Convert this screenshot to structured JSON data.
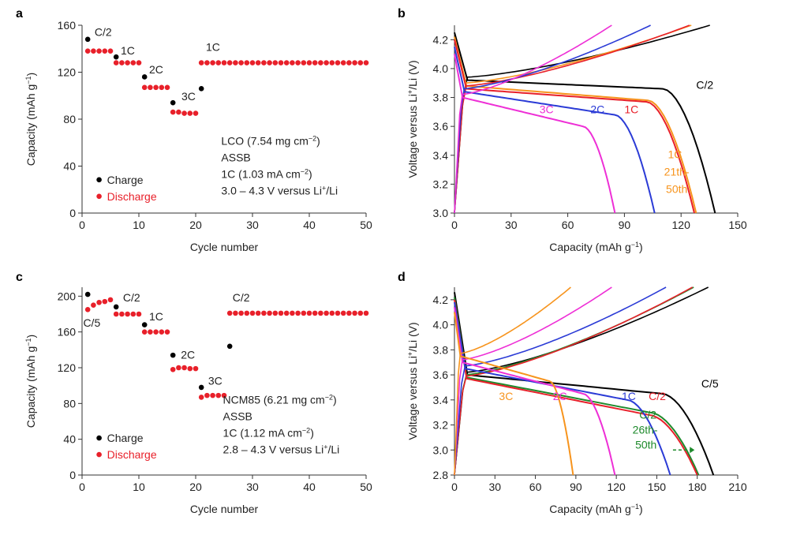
{
  "colors": {
    "black": "#000000",
    "red": "#e8202a",
    "orange": "#f7941d",
    "blue": "#2b3bd6",
    "magenta": "#ee2fd6",
    "green": "#1e8a2c",
    "gray": "#555555"
  },
  "chart_data": [
    {
      "panel": "a",
      "type": "scatter",
      "xlabel": "Cycle number",
      "ylabel": "Capacity (mAh g−1)",
      "xlim": [
        0,
        50
      ],
      "ylim": [
        0,
        160
      ],
      "xticks": [
        0,
        10,
        20,
        30,
        40,
        50
      ],
      "yticks": [
        0,
        40,
        80,
        120,
        160
      ],
      "series": [
        {
          "name": "Charge",
          "color": "black",
          "x": [
            1,
            6,
            11,
            16,
            21
          ],
          "values": [
            148,
            133,
            116,
            94,
            106
          ]
        },
        {
          "name": "Discharge",
          "color": "red",
          "x": [
            1,
            2,
            3,
            4,
            5,
            6,
            7,
            8,
            9,
            10,
            11,
            12,
            13,
            14,
            15,
            16,
            17,
            18,
            19,
            20,
            21,
            22,
            23,
            24,
            25,
            26,
            27,
            28,
            29,
            30,
            31,
            32,
            33,
            34,
            35,
            36,
            37,
            38,
            39,
            40,
            41,
            42,
            43,
            44,
            45,
            46,
            47,
            48,
            49,
            50
          ],
          "values": [
            138,
            138,
            138,
            138,
            138,
            128,
            128,
            128,
            128,
            128,
            107,
            107,
            107,
            107,
            107,
            86,
            86,
            85,
            85,
            85,
            128,
            128,
            128,
            128,
            128,
            128,
            128,
            128,
            128,
            128,
            128,
            128,
            128,
            128,
            128,
            128,
            128,
            128,
            128,
            128,
            128,
            128,
            128,
            128,
            128,
            128,
            128,
            128,
            128,
            128
          ]
        }
      ],
      "rate_labels": [
        {
          "text": "C/2",
          "x": 2.2,
          "y": 151
        },
        {
          "text": "1C",
          "x": 6.8,
          "y": 135
        },
        {
          "text": "2C",
          "x": 11.8,
          "y": 119
        },
        {
          "text": "3C",
          "x": 17.5,
          "y": 96
        },
        {
          "text": "1C",
          "x": 21.8,
          "y": 138
        }
      ],
      "annotation": [
        "LCO (7.54 mg cm−2)",
        "ASSB",
        "1C (1.03 mA cm−2)",
        "3.0 – 4.3 V versus Li+/Li"
      ],
      "legend": [
        "Charge",
        "Discharge"
      ]
    },
    {
      "panel": "b",
      "type": "line",
      "xlabel": "Capacity (mAh g−1)",
      "ylabel": "Voltage versus Li+/Li (V)",
      "xlim": [
        0,
        150
      ],
      "ylim": [
        3.0,
        4.3
      ],
      "xticks": [
        0,
        30,
        60,
        90,
        120,
        150
      ],
      "yticks": [
        3.0,
        3.2,
        3.4,
        3.6,
        3.8,
        4.0,
        4.2
      ],
      "curves": [
        {
          "name": "C/2",
          "color": "black",
          "end": 138,
          "plateau": 3.86,
          "start": 3.92,
          "ocv": 4.25
        },
        {
          "name": "1C",
          "color": "orange",
          "end": 128,
          "plateau": 3.78,
          "start": 3.88,
          "ocv": 4.22
        },
        {
          "name": "1C",
          "color": "red",
          "end": 127,
          "plateau": 3.77,
          "start": 3.86,
          "ocv": 4.2
        },
        {
          "name": "2C",
          "color": "blue",
          "end": 106,
          "plateau": 3.68,
          "start": 3.84,
          "ocv": 4.15
        },
        {
          "name": "3C",
          "color": "magenta",
          "end": 85,
          "plateau": 3.6,
          "start": 3.8,
          "ocv": 4.1
        }
      ],
      "labels": [
        {
          "text": "C/2",
          "x": 128,
          "y": 3.86,
          "color": "black"
        },
        {
          "text": "1C",
          "x": 90,
          "y": 3.69,
          "color": "red"
        },
        {
          "text": "2C",
          "x": 72,
          "y": 3.69,
          "color": "blue"
        },
        {
          "text": "3C",
          "x": 45,
          "y": 3.69,
          "color": "magenta"
        },
        {
          "text": "1C",
          "x": 113,
          "y": 3.38,
          "color": "orange"
        },
        {
          "text": "21th-",
          "x": 111,
          "y": 3.26,
          "color": "orange"
        },
        {
          "text": "50th",
          "x": 112,
          "y": 3.14,
          "color": "orange"
        }
      ]
    },
    {
      "panel": "c",
      "type": "scatter",
      "xlabel": "Cycle number",
      "ylabel": "Capacity (mAh g−1)",
      "xlim": [
        0,
        50
      ],
      "ylim": [
        0,
        210
      ],
      "xticks": [
        0,
        10,
        20,
        30,
        40,
        50
      ],
      "yticks": [
        0,
        40,
        80,
        120,
        160,
        200
      ],
      "series": [
        {
          "name": "Charge",
          "color": "black",
          "x": [
            1,
            6,
            11,
            16,
            21,
            26
          ],
          "values": [
            202,
            188,
            168,
            134,
            98,
            144
          ]
        },
        {
          "name": "Discharge",
          "color": "red",
          "x": [
            1,
            2,
            3,
            4,
            5,
            6,
            7,
            8,
            9,
            10,
            11,
            12,
            13,
            14,
            15,
            16,
            17,
            18,
            19,
            20,
            21,
            22,
            23,
            24,
            25,
            26,
            27,
            28,
            29,
            30,
            31,
            32,
            33,
            34,
            35,
            36,
            37,
            38,
            39,
            40,
            41,
            42,
            43,
            44,
            45,
            46,
            47,
            48,
            49,
            50
          ],
          "values": [
            185,
            190,
            193,
            194,
            196,
            180,
            180,
            180,
            180,
            180,
            160,
            160,
            160,
            160,
            160,
            118,
            120,
            120,
            119,
            119,
            87,
            89,
            89,
            89,
            89,
            181,
            181,
            181,
            181,
            181,
            181,
            181,
            181,
            181,
            181,
            181,
            181,
            181,
            181,
            181,
            181,
            181,
            181,
            181,
            181,
            181,
            181,
            181,
            181,
            181
          ]
        }
      ],
      "rate_labels": [
        {
          "text": "C/5",
          "x": 0.2,
          "y": 166
        },
        {
          "text": "C/2",
          "x": 7.2,
          "y": 194
        },
        {
          "text": "1C",
          "x": 11.8,
          "y": 173
        },
        {
          "text": "2C",
          "x": 17.4,
          "y": 130
        },
        {
          "text": "3C",
          "x": 22.2,
          "y": 101
        },
        {
          "text": "C/2",
          "x": 26.5,
          "y": 194
        }
      ],
      "annotation": [
        "NCM85 (6.21 mg cm−2)",
        "ASSB",
        "1C (1.12 mA cm−2)",
        "2.8 – 4.3 V versus Li+/Li"
      ],
      "legend": [
        "Charge",
        "Discharge"
      ]
    },
    {
      "panel": "d",
      "type": "line",
      "xlabel": "Capacity (mAh g−1)",
      "ylabel": "Voltage versus Li+/Li (V)",
      "xlim": [
        0,
        210
      ],
      "ylim": [
        2.8,
        4.3
      ],
      "xticks": [
        0,
        30,
        60,
        90,
        120,
        150,
        180,
        210
      ],
      "yticks": [
        2.8,
        3.0,
        3.2,
        3.4,
        3.6,
        3.8,
        4.0,
        4.2
      ],
      "curves": [
        {
          "name": "C/5",
          "color": "black",
          "end": 192,
          "plateau": 3.45,
          "start": 3.6,
          "ocv": 4.26
        },
        {
          "name": "C/2",
          "color": "green",
          "end": 181,
          "plateau": 3.3,
          "start": 3.58,
          "ocv": 4.22
        },
        {
          "name": "C/2",
          "color": "red",
          "end": 180,
          "plateau": 3.28,
          "start": 3.57,
          "ocv": 4.2
        },
        {
          "name": "1C",
          "color": "blue",
          "end": 160,
          "plateau": 3.4,
          "start": 3.65,
          "ocv": 4.18
        },
        {
          "name": "2C",
          "color": "magenta",
          "end": 119,
          "plateau": 3.45,
          "start": 3.7,
          "ocv": 4.14
        },
        {
          "name": "3C",
          "color": "orange",
          "end": 88,
          "plateau": 3.55,
          "start": 3.75,
          "ocv": 4.1
        }
      ],
      "labels": [
        {
          "text": "C/5",
          "x": 183,
          "y": 3.5,
          "color": "black"
        },
        {
          "text": "C/2",
          "x": 144,
          "y": 3.4,
          "color": "red"
        },
        {
          "text": "1C",
          "x": 124,
          "y": 3.4,
          "color": "blue"
        },
        {
          "text": "2C",
          "x": 73,
          "y": 3.4,
          "color": "magenta"
        },
        {
          "text": "3C",
          "x": 33,
          "y": 3.4,
          "color": "orange"
        },
        {
          "text": "C/2",
          "x": 137,
          "y": 3.25,
          "color": "green"
        },
        {
          "text": "26th-",
          "x": 132,
          "y": 3.13,
          "color": "green"
        },
        {
          "text": "50th",
          "x": 134,
          "y": 3.01,
          "color": "green"
        }
      ]
    }
  ],
  "panel_letters": [
    "a",
    "b",
    "c",
    "d"
  ]
}
